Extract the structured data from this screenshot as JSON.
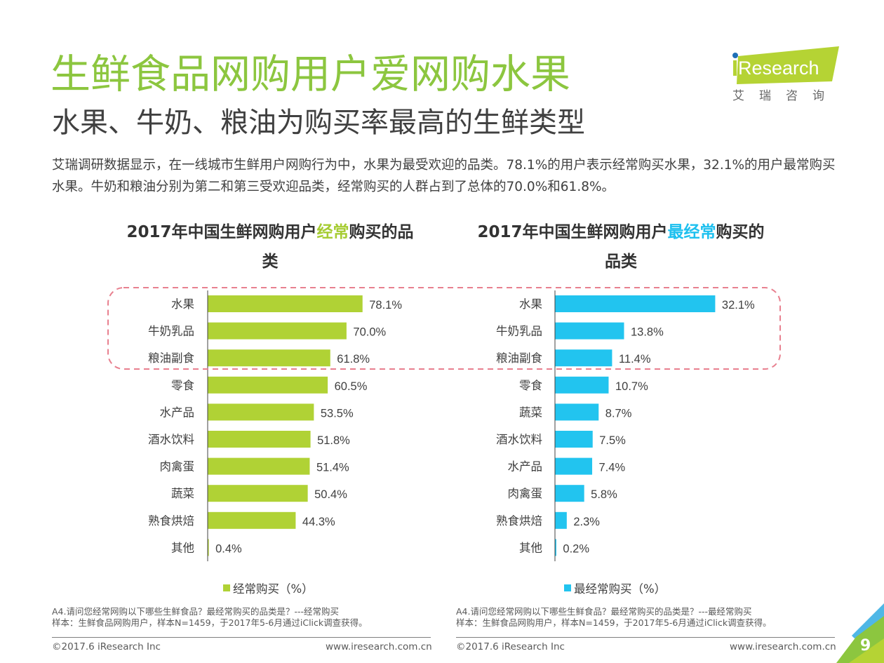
{
  "header": {
    "title": "生鲜食品网购用户爱网购水果",
    "subtitle": "水果、牛奶、粮油为购买率最高的生鲜类型",
    "summary": "艾瑞调研数据显示，在一线城市生鲜用户网购行为中，水果为最受欢迎的品类。78.1%的用户表示经常购买水果，32.1%的用户最常购买水果。牛奶和粮油分别为第二和第三受欢迎品类，经常购买的人群占到了总体的70.0%和61.8%。"
  },
  "logo": {
    "brand": "iResearch",
    "brand_i": "i",
    "brand_rest": "Research",
    "chinese": "艾瑞咨询",
    "colors": {
      "banner": "#b5d334",
      "dot": "#1f6fb7"
    }
  },
  "colors": {
    "title_green": "#8cc63f",
    "bar_green": "#b0d235",
    "bar_blue": "#22c4ef",
    "highlight_box": "#e8808f"
  },
  "chart_data": [
    {
      "type": "bar",
      "orientation": "horizontal",
      "title_parts": [
        "2017年中国生鲜网购用户",
        "经常",
        "购买的品类"
      ],
      "title": "2017年中国生鲜网购用户经常购买的品类",
      "categories": [
        "水果",
        "牛奶乳品",
        "粮油副食",
        "零食",
        "水产品",
        "酒水饮料",
        "肉禽蛋",
        "蔬菜",
        "熟食烘焙",
        "其他"
      ],
      "values": [
        78.1,
        70.0,
        61.8,
        60.5,
        53.5,
        51.8,
        51.4,
        50.4,
        44.3,
        0.4
      ],
      "value_labels": [
        "78.1%",
        "70.0%",
        "61.8%",
        "60.5%",
        "53.5%",
        "51.8%",
        "51.4%",
        "50.4%",
        "44.3%",
        "0.4%"
      ],
      "legend": "经常购买（%）",
      "legend_position": "bottom",
      "color": "#b0d235",
      "xlim": [
        0,
        100
      ],
      "grid": false,
      "highlighted_categories": [
        "水果",
        "牛奶乳品",
        "粮油副食"
      ]
    },
    {
      "type": "bar",
      "orientation": "horizontal",
      "title_parts": [
        "2017年中国生鲜网购用户",
        "最经常",
        "购买的品类"
      ],
      "title": "2017年中国生鲜网购用户最经常购买的品类",
      "categories": [
        "水果",
        "牛奶乳品",
        "粮油副食",
        "零食",
        "蔬菜",
        "酒水饮料",
        "水产品",
        "肉禽蛋",
        "熟食烘焙",
        "其他"
      ],
      "values": [
        32.1,
        13.8,
        11.4,
        10.7,
        8.7,
        7.5,
        7.4,
        5.8,
        2.3,
        0.2
      ],
      "value_labels": [
        "32.1%",
        "13.8%",
        "11.4%",
        "10.7%",
        "8.7%",
        "7.5%",
        "7.4%",
        "5.8%",
        "2.3%",
        "0.2%"
      ],
      "legend": "最经常购买（%）",
      "legend_position": "bottom",
      "color": "#22c4ef",
      "xlim": [
        0,
        40
      ],
      "grid": false,
      "highlighted_categories": [
        "水果",
        "牛奶乳品",
        "粮油副食"
      ]
    }
  ],
  "notes": {
    "left": [
      "A4.请问您经常网购以下哪些生鲜食品？最经常购买的品类是？---经常购买",
      "样本：生鲜食品网购用户，样本N=1459，于2017年5-6月通过iClick调查获得。"
    ],
    "right": [
      "A4.请问您经常网购以下哪些生鲜食品？最经常购买的品类是？---最经常购买",
      "样本：生鲜食品网购用户，样本N=1459，于2017年5-6月通过iClick调查获得。"
    ]
  },
  "footer": {
    "copyright": "©2017.6 iResearch Inc",
    "url": "www.iresearch.com.cn",
    "page_number": "9"
  }
}
